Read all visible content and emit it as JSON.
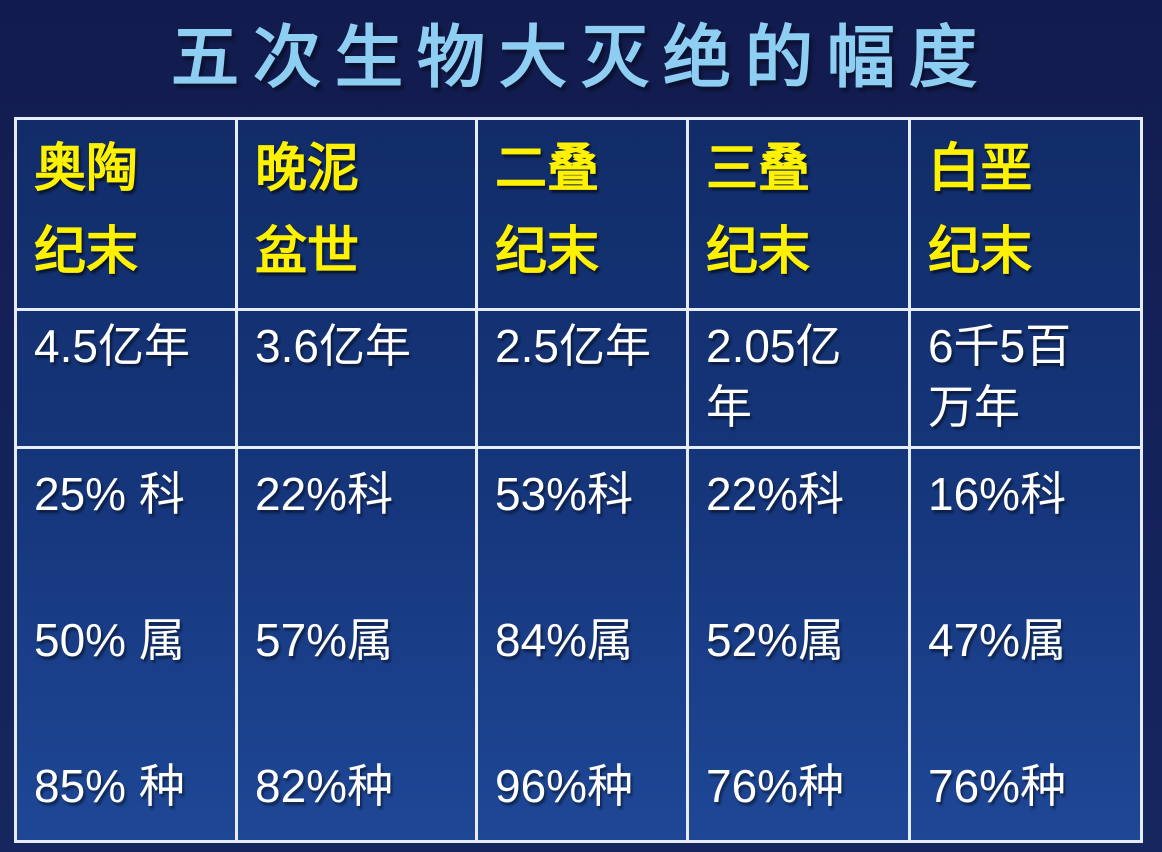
{
  "slide_title": "五次生物大灭绝的幅度",
  "colors": {
    "background_top": "#121b4d",
    "background_bottom": "#16265f",
    "table_fill_top": "#112c68",
    "table_fill_bottom": "#1e4796",
    "grid_line": "#e7edf8",
    "header_text": "#fef200",
    "body_text": "#ffffff",
    "title_text": "#8fcef3"
  },
  "table": {
    "row_semantics": [
      "period_name",
      "time_before_present",
      "percent_families / percent_genera / percent_species"
    ],
    "columns": [
      {
        "period": "奥陶\n纪末",
        "age": "4.5亿年",
        "family_pct": "25% 科",
        "genus_pct": "50% 属",
        "species_pct": "85% 种"
      },
      {
        "period": "晚泥\n盆世",
        "age": "3.6亿年",
        "family_pct": "22%科",
        "genus_pct": "57%属",
        "species_pct": "82%种"
      },
      {
        "period": "二叠\n纪末",
        "age": "2.5亿年",
        "family_pct": "53%科",
        "genus_pct": "84%属",
        "species_pct": "96%种"
      },
      {
        "period": "三叠\n纪末",
        "age": "2.05亿\n年",
        "family_pct": "22%科",
        "genus_pct": "52%属",
        "species_pct": "76%种"
      },
      {
        "period": "白垩\n纪末",
        "age": "6千5百\n万年",
        "family_pct": "16%科",
        "genus_pct": "47%属",
        "species_pct": "76%种"
      }
    ]
  }
}
